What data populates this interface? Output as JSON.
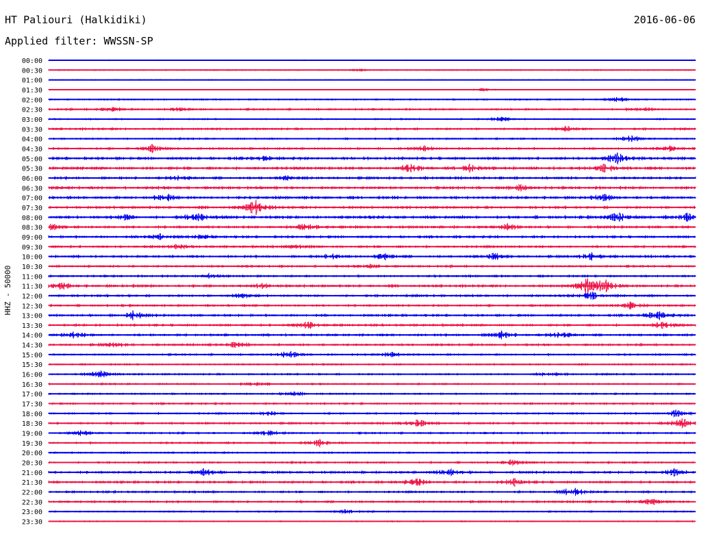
{
  "header": {
    "station": "HT Paliouri (Halkidiki)",
    "date": "2016-06-06",
    "filter": "Applied filter: WWSSN-SP"
  },
  "colors": {
    "even_trace": "#0000ee",
    "odd_trace": "#ee1144",
    "background": "#ffffff",
    "text": "#000000"
  },
  "chart_data": {
    "type": "helicorder",
    "ylabel": "HHZ - 50000",
    "traces": [
      {
        "time": "00:00",
        "amp": 0.3
      },
      {
        "time": "00:30",
        "amp": 0.4
      },
      {
        "time": "01:00",
        "amp": 0.3
      },
      {
        "time": "01:30",
        "amp": 0.3
      },
      {
        "time": "02:00",
        "amp": 0.6
      },
      {
        "time": "02:30",
        "amp": 0.8
      },
      {
        "time": "03:00",
        "amp": 0.6
      },
      {
        "time": "03:30",
        "amp": 0.9
      },
      {
        "time": "04:00",
        "amp": 0.7
      },
      {
        "time": "04:30",
        "amp": 0.9
      },
      {
        "time": "05:00",
        "amp": 1.2
      },
      {
        "time": "05:30",
        "amp": 1.3
      },
      {
        "time": "06:00",
        "amp": 1.1
      },
      {
        "time": "06:30",
        "amp": 1.2
      },
      {
        "time": "07:00",
        "amp": 1.2
      },
      {
        "time": "07:30",
        "amp": 1.1
      },
      {
        "time": "08:00",
        "amp": 1.3
      },
      {
        "time": "08:30",
        "amp": 1.1
      },
      {
        "time": "09:00",
        "amp": 1.0
      },
      {
        "time": "09:30",
        "amp": 1.0
      },
      {
        "time": "10:00",
        "amp": 1.0
      },
      {
        "time": "10:30",
        "amp": 0.9
      },
      {
        "time": "11:00",
        "amp": 0.9
      },
      {
        "time": "11:30",
        "amp": 1.1
      },
      {
        "time": "12:00",
        "amp": 1.0
      },
      {
        "time": "12:30",
        "amp": 0.9
      },
      {
        "time": "13:00",
        "amp": 1.0
      },
      {
        "time": "13:30",
        "amp": 1.0
      },
      {
        "time": "14:00",
        "amp": 1.0
      },
      {
        "time": "14:30",
        "amp": 0.9
      },
      {
        "time": "15:00",
        "amp": 0.8
      },
      {
        "time": "15:30",
        "amp": 0.7
      },
      {
        "time": "16:00",
        "amp": 0.8
      },
      {
        "time": "16:30",
        "amp": 0.7
      },
      {
        "time": "17:00",
        "amp": 0.7
      },
      {
        "time": "17:30",
        "amp": 0.8
      },
      {
        "time": "18:00",
        "amp": 0.8
      },
      {
        "time": "18:30",
        "amp": 0.9
      },
      {
        "time": "19:00",
        "amp": 0.8
      },
      {
        "time": "19:30",
        "amp": 0.8
      },
      {
        "time": "20:00",
        "amp": 0.7
      },
      {
        "time": "20:30",
        "amp": 0.8
      },
      {
        "time": "21:00",
        "amp": 1.0
      },
      {
        "time": "21:30",
        "amp": 1.0
      },
      {
        "time": "22:00",
        "amp": 0.9
      },
      {
        "time": "22:30",
        "amp": 0.9
      },
      {
        "time": "23:00",
        "amp": 0.6
      },
      {
        "time": "23:30",
        "amp": 0.5
      }
    ],
    "events": [
      {
        "trace": 1,
        "x": 0.48,
        "amp": 1.5
      },
      {
        "trace": 3,
        "x": 0.67,
        "amp": 2
      },
      {
        "trace": 4,
        "x": 0.88,
        "amp": 3
      },
      {
        "trace": 5,
        "x": 0.1,
        "amp": 5
      },
      {
        "trace": 5,
        "x": 0.2,
        "amp": 3
      },
      {
        "trace": 5,
        "x": 0.92,
        "amp": 3
      },
      {
        "trace": 6,
        "x": 0.7,
        "amp": 4
      },
      {
        "trace": 7,
        "x": 0.8,
        "amp": 4
      },
      {
        "trace": 8,
        "x": 0.9,
        "amp": 5
      },
      {
        "trace": 9,
        "x": 0.16,
        "amp": 5
      },
      {
        "trace": 9,
        "x": 0.58,
        "amp": 3
      },
      {
        "trace": 9,
        "x": 0.96,
        "amp": 4
      },
      {
        "trace": 10,
        "x": 0.33,
        "amp": 3
      },
      {
        "trace": 10,
        "x": 0.88,
        "amp": 8
      },
      {
        "trace": 11,
        "x": 0.56,
        "amp": 7
      },
      {
        "trace": 11,
        "x": 0.65,
        "amp": 6
      },
      {
        "trace": 11,
        "x": 0.86,
        "amp": 6
      },
      {
        "trace": 12,
        "x": 0.2,
        "amp": 4
      },
      {
        "trace": 12,
        "x": 0.37,
        "amp": 3
      },
      {
        "trace": 13,
        "x": 0.73,
        "amp": 4
      },
      {
        "trace": 14,
        "x": 0.18,
        "amp": 6
      },
      {
        "trace": 14,
        "x": 0.86,
        "amp": 4
      },
      {
        "trace": 15,
        "x": 0.32,
        "amp": 12
      },
      {
        "trace": 16,
        "x": 0.12,
        "amp": 4
      },
      {
        "trace": 16,
        "x": 0.23,
        "amp": 7
      },
      {
        "trace": 16,
        "x": 0.88,
        "amp": 7
      },
      {
        "trace": 16,
        "x": 0.99,
        "amp": 6
      },
      {
        "trace": 17,
        "x": 0.0,
        "amp": 5
      },
      {
        "trace": 17,
        "x": 0.4,
        "amp": 6
      },
      {
        "trace": 17,
        "x": 0.71,
        "amp": 4
      },
      {
        "trace": 18,
        "x": 0.17,
        "amp": 5
      },
      {
        "trace": 18,
        "x": 0.24,
        "amp": 3
      },
      {
        "trace": 19,
        "x": 0.39,
        "amp": 4
      },
      {
        "trace": 19,
        "x": 0.2,
        "amp": 3
      },
      {
        "trace": 20,
        "x": 0.44,
        "amp": 4
      },
      {
        "trace": 20,
        "x": 0.52,
        "amp": 5
      },
      {
        "trace": 20,
        "x": 0.69,
        "amp": 5
      },
      {
        "trace": 20,
        "x": 0.84,
        "amp": 6
      },
      {
        "trace": 21,
        "x": 0.5,
        "amp": 3
      },
      {
        "trace": 22,
        "x": 0.25,
        "amp": 4
      },
      {
        "trace": 23,
        "x": 0.02,
        "amp": 5
      },
      {
        "trace": 23,
        "x": 0.33,
        "amp": 4
      },
      {
        "trace": 23,
        "x": 0.83,
        "amp": 12
      },
      {
        "trace": 23,
        "x": 0.86,
        "amp": 10
      },
      {
        "trace": 24,
        "x": 0.3,
        "amp": 4
      },
      {
        "trace": 24,
        "x": 0.84,
        "amp": 6
      },
      {
        "trace": 25,
        "x": 0.9,
        "amp": 5
      },
      {
        "trace": 26,
        "x": 0.13,
        "amp": 6
      },
      {
        "trace": 26,
        "x": 0.94,
        "amp": 7
      },
      {
        "trace": 27,
        "x": 0.4,
        "amp": 6
      },
      {
        "trace": 27,
        "x": 0.95,
        "amp": 5
      },
      {
        "trace": 28,
        "x": 0.04,
        "amp": 5
      },
      {
        "trace": 28,
        "x": 0.7,
        "amp": 6
      },
      {
        "trace": 28,
        "x": 0.79,
        "amp": 6
      },
      {
        "trace": 29,
        "x": 0.1,
        "amp": 4
      },
      {
        "trace": 29,
        "x": 0.29,
        "amp": 4
      },
      {
        "trace": 30,
        "x": 0.37,
        "amp": 6
      },
      {
        "trace": 30,
        "x": 0.53,
        "amp": 5
      },
      {
        "trace": 32,
        "x": 0.08,
        "amp": 6
      },
      {
        "trace": 32,
        "x": 0.77,
        "amp": 4
      },
      {
        "trace": 33,
        "x": 0.32,
        "amp": 3
      },
      {
        "trace": 34,
        "x": 0.38,
        "amp": 4
      },
      {
        "trace": 36,
        "x": 0.34,
        "amp": 3
      },
      {
        "trace": 36,
        "x": 0.97,
        "amp": 5
      },
      {
        "trace": 37,
        "x": 0.57,
        "amp": 6
      },
      {
        "trace": 37,
        "x": 0.98,
        "amp": 7
      },
      {
        "trace": 38,
        "x": 0.05,
        "amp": 3
      },
      {
        "trace": 38,
        "x": 0.34,
        "amp": 5
      },
      {
        "trace": 39,
        "x": 0.42,
        "amp": 5
      },
      {
        "trace": 41,
        "x": 0.72,
        "amp": 4
      },
      {
        "trace": 42,
        "x": 0.24,
        "amp": 6
      },
      {
        "trace": 42,
        "x": 0.62,
        "amp": 6
      },
      {
        "trace": 42,
        "x": 0.97,
        "amp": 7
      },
      {
        "trace": 43,
        "x": 0.57,
        "amp": 6
      },
      {
        "trace": 43,
        "x": 0.72,
        "amp": 5
      },
      {
        "trace": 44,
        "x": 0.81,
        "amp": 9
      },
      {
        "trace": 45,
        "x": 0.93,
        "amp": 6
      },
      {
        "trace": 46,
        "x": 0.46,
        "amp": 3
      }
    ]
  }
}
